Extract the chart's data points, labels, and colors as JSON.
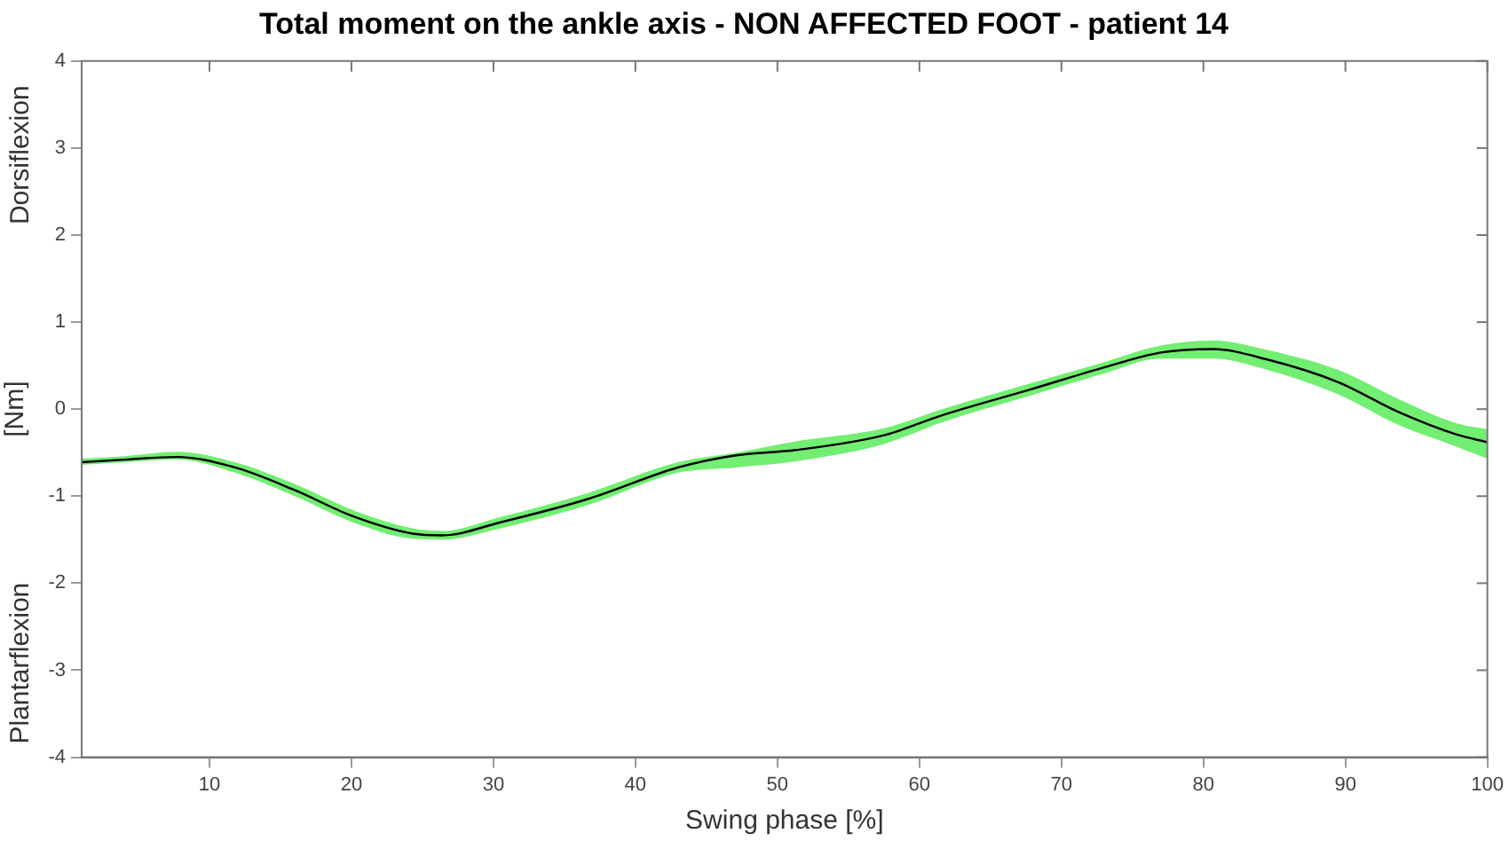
{
  "chart_data": {
    "type": "line",
    "title": "Total moment on the ankle axis - NON AFFECTED FOOT - patient 14",
    "xlabel": "Swing phase [%]",
    "ylabel": "[Nm]",
    "annotations": [
      "Dorsiflexion",
      "Plantarflexion"
    ],
    "x": [
      1,
      4,
      7.7,
      11.8,
      16,
      20.1,
      24.3,
      26.4,
      30.5,
      36.7,
      43,
      47.1,
      51.3,
      57.5,
      61.6,
      67.9,
      72.8,
      77,
      80.7,
      84.5,
      89.5,
      93.7,
      97.8,
      100
    ],
    "series": [
      {
        "color": "#000000",
        "values": [
          -0.61,
          -0.58,
          -0.55,
          -0.67,
          -0.93,
          -1.23,
          -1.43,
          -1.45,
          -1.3,
          -1.03,
          -0.67,
          -0.53,
          -0.47,
          -0.3,
          -0.07,
          0.23,
          0.47,
          0.65,
          0.69,
          0.57,
          0.31,
          -0.03,
          -0.29,
          -0.38
        ],
        "lower": [
          -0.64,
          -0.61,
          -0.58,
          -0.73,
          -1.0,
          -1.3,
          -1.49,
          -1.5,
          -1.37,
          -1.1,
          -0.73,
          -0.67,
          -0.6,
          -0.4,
          -0.15,
          0.16,
          0.4,
          0.58,
          0.58,
          0.45,
          0.17,
          -0.18,
          -0.43,
          -0.57
        ],
        "upper": [
          -0.57,
          -0.54,
          -0.49,
          -0.61,
          -0.86,
          -1.16,
          -1.37,
          -1.4,
          -1.24,
          -0.96,
          -0.61,
          -0.5,
          -0.37,
          -0.22,
          0.0,
          0.3,
          0.53,
          0.73,
          0.79,
          0.68,
          0.45,
          0.12,
          -0.16,
          -0.23
        ]
      }
    ],
    "xlim": [
      1,
      100
    ],
    "xticks": [
      10,
      20,
      30,
      40,
      50,
      60,
      70,
      80,
      90,
      100
    ],
    "ylim": [
      -4,
      4
    ],
    "yticks": [
      -4,
      -3,
      -2,
      -1,
      0,
      1,
      2,
      3,
      4
    ],
    "grid": false,
    "legend": false,
    "marker": "none",
    "line_style": "solid"
  }
}
